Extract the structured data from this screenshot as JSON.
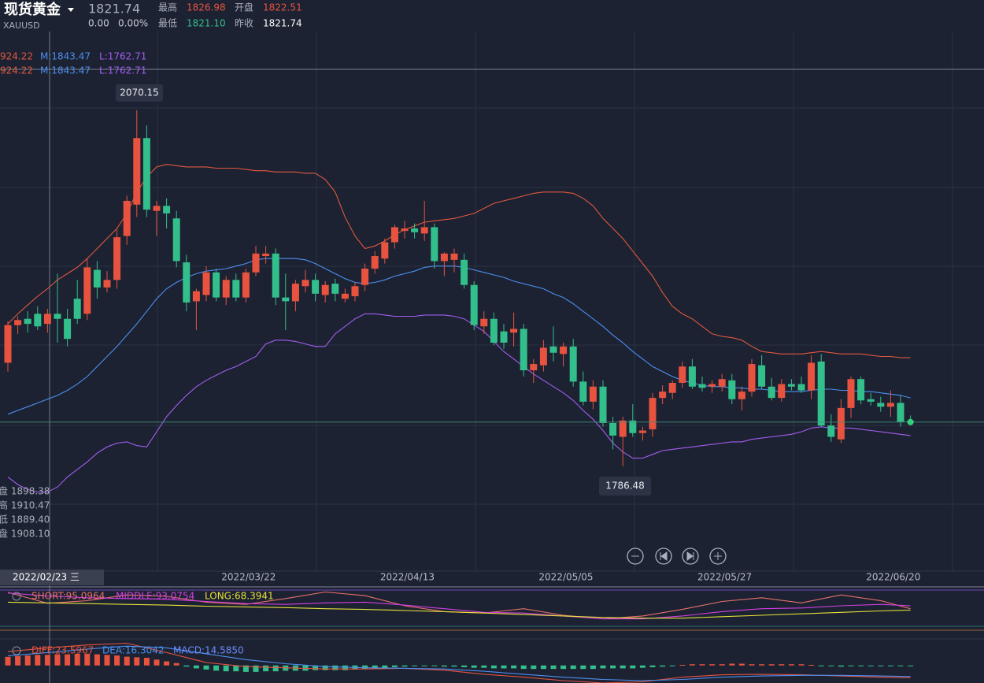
{
  "header": {
    "name": "现货黄金",
    "price": "1821.74",
    "symbol": "XAUUSD",
    "change": "0.00",
    "change_pct": "0.00%",
    "stats": [
      {
        "label": "最高",
        "value": "1826.98"
      },
      {
        "label": "开盘",
        "value": "1822.51"
      },
      {
        "label": "最低",
        "value": "1821.10"
      },
      {
        "label": "昨收",
        "value": "1821.74"
      }
    ]
  },
  "boll_legend": [
    [
      "924.22",
      "M:1843.47",
      "L:1762.71"
    ],
    [
      "924.22",
      "M:1843.47",
      "L:1762.71"
    ]
  ],
  "info_panel": [
    "盘 1898.38",
    "高 1910.47",
    "低 1889.40",
    "盘 1908.10"
  ],
  "cursor_label": "2022/02/23 三",
  "chart_data": [
    {
      "type": "candlestick",
      "ylim": [
        1703,
        2158
      ],
      "up_color": "#e8533f",
      "down_color": "#33bf8b",
      "categories": [
        null,
        null,
        null,
        null,
        null,
        null,
        null,
        null,
        null,
        null,
        null,
        null,
        null,
        null,
        null,
        null,
        null,
        null,
        null,
        null,
        null,
        null,
        null,
        "2022/03/22",
        null,
        null,
        null,
        null,
        null,
        null,
        null,
        null,
        null,
        null,
        null,
        null,
        null,
        null,
        null,
        "2022/04/13",
        null,
        null,
        null,
        null,
        null,
        null,
        null,
        null,
        null,
        null,
        null,
        null,
        null,
        null,
        null,
        "2022/05/05",
        null,
        null,
        null,
        null,
        null,
        null,
        null,
        null,
        null,
        null,
        null,
        null,
        null,
        null,
        null,
        "2022/05/27",
        null,
        null,
        null,
        null,
        null,
        null,
        null,
        null,
        null,
        null,
        null,
        null,
        null,
        null,
        null,
        null,
        "2022/06/20",
        null,
        null,
        null
      ],
      "open": [
        1869,
        1899,
        1904,
        1908,
        1900,
        1908,
        1904,
        1920,
        1908,
        1943,
        1929,
        1935,
        1970,
        1995,
        2048,
        1990,
        1994,
        1984,
        1949,
        1918,
        1923,
        1941,
        1921,
        1935,
        1921,
        1941,
        1954,
        1956,
        1921,
        1918,
        1930,
        1935,
        1923,
        1932,
        1920,
        1922,
        1931,
        1944,
        1952,
        1965,
        1974,
        1976,
        1972,
        1977,
        1950,
        1951,
        1951,
        1931,
        1898,
        1904,
        1894,
        1893,
        1896,
        1863,
        1867,
        1882,
        1876,
        1882,
        1854,
        1838,
        1850,
        1821,
        1810,
        1823,
        1813,
        1816,
        1841,
        1845,
        1853,
        1866,
        1852,
        1850,
        1850,
        1855,
        1840,
        1846,
        1867,
        1850,
        1841,
        1852,
        1852,
        1847,
        1870,
        1819,
        1808,
        1833,
        1856,
        1840,
        1837,
        1834,
        1837,
        1822.51
      ],
      "high": [
        1902,
        1906,
        1910,
        1914,
        1912,
        1940,
        1912,
        1935,
        1952,
        1950,
        1942,
        1975,
        2002,
        2070.15,
        2058,
        1998,
        2000,
        1990,
        1955,
        1928,
        1946,
        1944,
        1938,
        1940,
        1944,
        1962,
        1962,
        1960,
        1940,
        1935,
        1943,
        1940,
        1934,
        1936,
        1928,
        1933,
        1948,
        1958,
        1968,
        1979,
        1982,
        1980,
        1998,
        1980,
        1957,
        1960,
        1956,
        1934,
        1910,
        1909,
        1900,
        1909,
        1900,
        1872,
        1887,
        1898,
        1885,
        1888,
        1862,
        1855,
        1855,
        1826,
        1826,
        1836,
        1818,
        1845,
        1851,
        1855,
        1870,
        1872,
        1858,
        1855,
        1860,
        1860,
        1850,
        1872,
        1875,
        1857,
        1856,
        1856,
        1858,
        1875,
        1876,
        1828,
        1840,
        1858,
        1858,
        1845,
        1842,
        1847,
        1843,
        1826.98
      ],
      "low": [
        1862,
        1892,
        1893,
        1895,
        1893,
        1885,
        1882,
        1900,
        1903,
        1920,
        1925,
        1928,
        1963,
        1985,
        1985,
        1970,
        1976,
        1945,
        1910,
        1895,
        1918,
        1918,
        1915,
        1918,
        1917,
        1938,
        1948,
        1915,
        1895,
        1910,
        1925,
        1918,
        1917,
        1918,
        1917,
        1918,
        1926,
        1940,
        1948,
        1960,
        1968,
        1968,
        1966,
        1944,
        1938,
        1941,
        1928,
        1895,
        1892,
        1883,
        1880,
        1882,
        1858,
        1853,
        1862,
        1870,
        1866,
        1850,
        1835,
        1832,
        1818,
        1800,
        1786.48,
        1810,
        1807,
        1810,
        1836,
        1840,
        1849,
        1848,
        1846,
        1845,
        1846,
        1836,
        1831,
        1842,
        1848,
        1839,
        1838,
        1847,
        1845,
        1840,
        1818,
        1806,
        1805,
        1825,
        1836,
        1835,
        1830,
        1826,
        1818,
        1821.1
      ],
      "close": [
        1899,
        1903,
        1900,
        1898,
        1908,
        1904,
        1888,
        1904,
        1945,
        1929,
        1935,
        1969,
        1998,
        2048,
        1991,
        1994,
        1988,
        1950,
        1917,
        1926,
        1941,
        1921,
        1935,
        1921,
        1941,
        1956,
        1956,
        1921,
        1918,
        1932,
        1935,
        1924,
        1931,
        1924,
        1924,
        1930,
        1944,
        1954,
        1965,
        1977,
        1976,
        1973,
        1977,
        1950,
        1956,
        1956,
        1931,
        1899,
        1904,
        1885,
        1885,
        1896,
        1863,
        1868,
        1881,
        1877,
        1882,
        1854,
        1838,
        1850,
        1821,
        1811,
        1823,
        1813,
        1815,
        1841,
        1846,
        1853,
        1866,
        1850,
        1849,
        1852,
        1856,
        1840,
        1846,
        1868,
        1850,
        1841,
        1852,
        1850,
        1847,
        1869,
        1819,
        1810,
        1833,
        1856,
        1839,
        1838,
        1834,
        1837,
        1822,
        1821.74
      ],
      "series": [
        {
          "color": "#e0583e",
          "values": [
            1900,
            1908,
            1915,
            1922,
            1928,
            1935,
            1940,
            1945,
            1952,
            1960,
            1968,
            1976,
            1988,
            2005,
            2017,
            2025,
            2027,
            2026,
            2025,
            2025,
            2025,
            2024,
            2024,
            2024,
            2023,
            2022,
            2022,
            2021,
            2021,
            2021,
            2020,
            2020,
            2015,
            2005,
            1985,
            1970,
            1960,
            1962,
            1966,
            1971,
            1975,
            1978,
            1981,
            1982,
            1983,
            1984,
            1986,
            1988,
            1992,
            1996,
            1998,
            2000,
            2002,
            2004,
            2005,
            2005,
            2005,
            2004,
            2000,
            1994,
            1984,
            1976,
            1968,
            1958,
            1948,
            1938,
            1925,
            1914,
            1908,
            1904,
            1898,
            1892,
            1890,
            1889,
            1887,
            1882,
            1878,
            1877,
            1876,
            1876,
            1876,
            1877,
            1878,
            1877,
            1876,
            1876,
            1876,
            1875,
            1874,
            1874,
            1873,
            1873
          ]
        },
        {
          "color": "#4c8fef",
          "values": [
            1828,
            1831,
            1834,
            1837,
            1840,
            1843,
            1847,
            1852,
            1858,
            1866,
            1874,
            1882,
            1891,
            1900,
            1910,
            1920,
            1928,
            1933,
            1937,
            1940,
            1942,
            1943,
            1944,
            1946,
            1948,
            1951,
            1952,
            1952,
            1952,
            1952,
            1951,
            1948,
            1944,
            1940,
            1936,
            1933,
            1932,
            1933,
            1935,
            1938,
            1940,
            1942,
            1945,
            1946,
            1946,
            1946,
            1945,
            1943,
            1941,
            1939,
            1937,
            1934,
            1932,
            1930,
            1928,
            1924,
            1921,
            1916,
            1910,
            1904,
            1898,
            1891,
            1885,
            1878,
            1872,
            1866,
            1862,
            1858,
            1855,
            1853,
            1851,
            1850,
            1850,
            1849,
            1849,
            1848,
            1848,
            1847,
            1846,
            1846,
            1846,
            1847,
            1848,
            1848,
            1847,
            1847,
            1846,
            1846,
            1845,
            1844,
            1843,
            1841
          ]
        },
        {
          "color": "#a45cf0",
          "values": [
            1778,
            1772,
            1768,
            1766,
            1766,
            1770,
            1778,
            1784,
            1790,
            1797,
            1802,
            1805,
            1806,
            1803,
            1802,
            1814,
            1826,
            1835,
            1843,
            1850,
            1855,
            1859,
            1863,
            1866,
            1870,
            1874,
            1884,
            1887,
            1887,
            1886,
            1884,
            1882,
            1882,
            1892,
            1898,
            1904,
            1908,
            1908,
            1907,
            1906,
            1906,
            1906,
            1907,
            1907,
            1907,
            1906,
            1904,
            1899,
            1894,
            1886,
            1878,
            1872,
            1866,
            1860,
            1855,
            1850,
            1845,
            1839,
            1831,
            1824,
            1815,
            1805,
            1798,
            1793,
            1793,
            1796,
            1799,
            1800,
            1801,
            1802,
            1803,
            1804,
            1805,
            1806,
            1806,
            1808,
            1809,
            1810,
            1811,
            1812,
            1814,
            1817,
            1818,
            1817,
            1817,
            1817,
            1816,
            1815,
            1814,
            1813,
            1812,
            1811
          ]
        }
      ]
    },
    {
      "type": "line",
      "ylim": [
        -20,
        110
      ],
      "x": [
        0,
        4,
        8,
        12,
        16,
        20,
        24,
        28,
        32,
        36,
        40,
        44,
        48,
        52,
        56,
        60,
        64,
        68,
        72,
        76,
        80,
        84,
        88,
        91
      ],
      "series": [
        {
          "name": "SHORT:95.0964",
          "color": "#e8706a",
          "values": [
            95,
            65,
            72,
            88,
            84,
            68,
            62,
            78,
            96,
            86,
            58,
            42,
            38,
            50,
            32,
            22,
            30,
            48,
            70,
            80,
            66,
            88,
            72,
            50
          ]
        },
        {
          "name": "MIDDLE:93.0754",
          "color": "#d03fe0",
          "values": [
            93,
            85,
            80,
            78,
            76,
            70,
            64,
            62,
            66,
            68,
            60,
            50,
            40,
            38,
            30,
            22,
            22,
            30,
            42,
            50,
            52,
            58,
            62,
            58
          ]
        },
        {
          "name": "LONG:68.3941",
          "color": "#e6e03a",
          "values": [
            68,
            66,
            64,
            62,
            60,
            57,
            55,
            53,
            50,
            48,
            45,
            42,
            38,
            34,
            30,
            26,
            24,
            24,
            28,
            32,
            36,
            40,
            44,
            46
          ]
        }
      ]
    },
    {
      "type": "macd",
      "ylim": [
        -30,
        40
      ],
      "x": [
        0,
        4,
        8,
        12,
        16,
        20,
        24,
        28,
        32,
        36,
        40,
        44,
        48,
        52,
        56,
        60,
        64,
        68,
        72,
        76,
        80,
        84,
        88,
        91
      ],
      "series": [
        {
          "name": "DIFF:23.5967",
          "color": "#e8533f",
          "values": [
            23.6,
            30,
            35,
            38,
            22,
            5,
            -2,
            -4,
            -6,
            -6,
            -5,
            -8,
            -15,
            -20,
            -26,
            -30,
            -28,
            -20,
            -16,
            -15,
            -16,
            -18,
            -20,
            -21
          ]
        },
        {
          "name": "DEA:16.3042",
          "color": "#4c8fef",
          "values": [
            16.3,
            22,
            28,
            33,
            30,
            20,
            10,
            3,
            -2,
            -4,
            -5,
            -6,
            -10,
            -15,
            -20,
            -24,
            -26,
            -24,
            -20,
            -18,
            -17,
            -17,
            -18,
            -19
          ]
        }
      ],
      "histogram": {
        "name": "MACD:14.5850",
        "color": "#6e8cff",
        "up_color": "#e8533f",
        "down_color": "#33bf8b",
        "values": [
          14.6,
          16,
          17,
          18,
          18,
          19,
          19,
          20,
          20,
          19,
          18,
          17,
          15,
          14,
          13,
          10,
          7,
          4,
          -2,
          -5,
          -7,
          -9,
          -10,
          -10,
          -11,
          -11,
          -10,
          -10,
          -9,
          -9,
          -9,
          -8,
          -8,
          -8,
          -8,
          -7,
          -6,
          -5,
          -4,
          -3,
          -2,
          -1,
          -1,
          -1,
          -2,
          -2,
          -3,
          -4,
          -4,
          -5,
          -5,
          -5,
          -6,
          -6,
          -6,
          -6,
          -6,
          -6,
          -6,
          -6,
          -5,
          -5,
          -5,
          -5,
          -4,
          -3,
          -2,
          -1,
          1,
          2,
          2,
          2,
          2,
          3,
          3,
          2,
          2,
          2,
          2,
          2,
          2,
          1,
          -1,
          -1,
          -2,
          -1,
          -1,
          -1,
          -1,
          -1,
          -1,
          -1
        ]
      }
    }
  ]
}
